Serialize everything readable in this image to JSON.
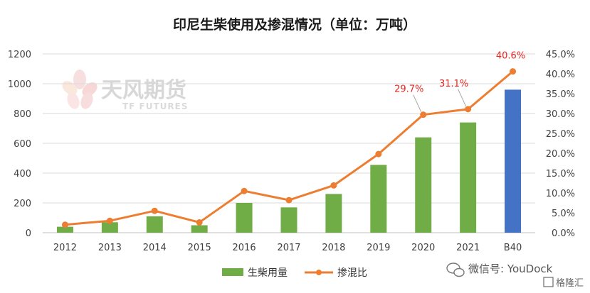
{
  "watermark": {
    "brand_cn": "天风期货",
    "brand_en": "TF FUTURES"
  },
  "corner": {
    "wechat_label": "微信号: YouDock",
    "site_label": "格隆汇"
  },
  "chart_data": {
    "type": "bar",
    "title": "印尼生柴使用及掺混情况（单位：万吨）",
    "categories": [
      "2012",
      "2013",
      "2014",
      "2015",
      "2016",
      "2017",
      "2018",
      "2019",
      "2020",
      "2021",
      "B40"
    ],
    "series": [
      {
        "name": "生柴用量",
        "type": "bar",
        "axis": "left",
        "values": [
          40,
          70,
          110,
          50,
          200,
          170,
          260,
          455,
          640,
          740,
          960
        ],
        "colors": [
          "#70ad47",
          "#70ad47",
          "#70ad47",
          "#70ad47",
          "#70ad47",
          "#70ad47",
          "#70ad47",
          "#70ad47",
          "#70ad47",
          "#70ad47",
          "#4472c4"
        ]
      },
      {
        "name": "掺混比",
        "type": "line",
        "axis": "right",
        "values": [
          2.0,
          3.0,
          5.5,
          2.6,
          10.5,
          8.2,
          11.9,
          19.8,
          29.7,
          31.1,
          40.6
        ],
        "color": "#ed7d31"
      }
    ],
    "data_labels": [
      {
        "index": 8,
        "text": "29.7%"
      },
      {
        "index": 9,
        "text": "31.1%"
      },
      {
        "index": 10,
        "text": "40.6%"
      }
    ],
    "y_left": {
      "min": 0,
      "max": 1200,
      "ticks": [
        "0",
        "200",
        "400",
        "600",
        "800",
        "1000",
        "1200"
      ]
    },
    "y_right": {
      "min": 0,
      "max": 45,
      "ticks": [
        "0.0%",
        "5.0%",
        "10.0%",
        "15.0%",
        "20.0%",
        "25.0%",
        "30.0%",
        "35.0%",
        "40.0%",
        "45.0%"
      ]
    },
    "grid": true,
    "legend_position": "bottom"
  }
}
